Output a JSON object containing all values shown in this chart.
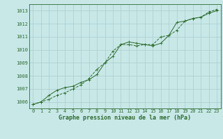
{
  "title": "Graphe pression niveau de la mer (hPa)",
  "bg_color": "#c8e8e8",
  "grid_color": "#aacccc",
  "line_color": "#2d6a2d",
  "x_ticks": [
    0,
    1,
    2,
    3,
    4,
    5,
    6,
    7,
    8,
    9,
    10,
    11,
    12,
    13,
    14,
    15,
    16,
    17,
    18,
    19,
    20,
    21,
    22,
    23
  ],
  "ylim": [
    1005.5,
    1013.5
  ],
  "yticks": [
    1006,
    1007,
    1008,
    1009,
    1010,
    1011,
    1012,
    1013
  ],
  "line1_x": [
    0,
    1,
    2,
    3,
    4,
    5,
    6,
    7,
    8,
    9,
    10,
    11,
    12,
    13,
    14,
    15,
    16,
    17,
    18,
    19,
    20,
    21,
    22,
    23
  ],
  "line1_y": [
    1005.8,
    1006.0,
    1006.5,
    1006.9,
    1007.1,
    1007.2,
    1007.5,
    1007.7,
    1008.1,
    1009.0,
    1009.5,
    1010.4,
    1010.6,
    1010.5,
    1010.4,
    1010.3,
    1010.5,
    1011.1,
    1012.1,
    1012.2,
    1012.4,
    1012.5,
    1012.8,
    1013.0
  ],
  "line2_x": [
    0,
    1,
    2,
    3,
    4,
    5,
    6,
    7,
    8,
    9,
    10,
    11,
    12,
    13,
    14,
    15,
    16,
    17,
    18,
    19,
    20,
    21,
    22,
    23
  ],
  "line2_y": [
    1005.8,
    1006.0,
    1006.2,
    1006.5,
    1006.7,
    1007.0,
    1007.3,
    1007.8,
    1008.5,
    1009.0,
    1009.9,
    1010.4,
    1010.4,
    1010.3,
    1010.4,
    1010.4,
    1011.0,
    1011.1,
    1011.5,
    1012.2,
    1012.4,
    1012.5,
    1012.9,
    1013.1
  ],
  "tick_fontsize": 5,
  "xlabel_fontsize": 6,
  "linewidth": 0.7,
  "markersize": 2
}
